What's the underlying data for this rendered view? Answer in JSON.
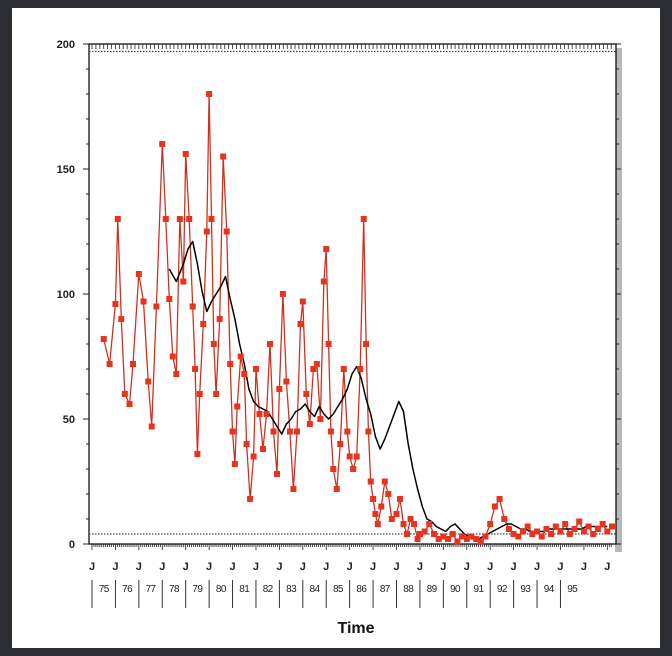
{
  "chart_data": {
    "type": "line",
    "title": "",
    "xlabel": "Time",
    "ylabel": "",
    "x_range": [
      1975.0,
      1997.2
    ],
    "ylim": [
      0,
      200
    ],
    "y_ticks": [
      0,
      50,
      100,
      150,
      200
    ],
    "y_tick_labels": [
      "0",
      "50",
      "100",
      "150",
      "200"
    ],
    "x_month_letter": "J",
    "x_year_labels": [
      "75",
      "76",
      "77",
      "78",
      "79",
      "80",
      "81",
      "82",
      "83",
      "84",
      "85",
      "86",
      "87",
      "88",
      "89",
      "90",
      "91",
      "92",
      "93",
      "94",
      "95"
    ],
    "grid": false,
    "reference_lines": [
      4,
      197
    ],
    "colors": {
      "observed": "#e8331f",
      "moving_average": "#000000",
      "axis": "#222222",
      "frame_shadow": "#b8b8b8"
    },
    "series": [
      {
        "points": [
          [
            1975.5,
            82
          ],
          [
            1975.75,
            72
          ],
          [
            1976.0,
            96
          ],
          [
            1976.1,
            130
          ],
          [
            1976.25,
            90
          ],
          [
            1976.4,
            60
          ],
          [
            1976.6,
            56
          ],
          [
            1976.75,
            72
          ],
          [
            1977.0,
            108
          ],
          [
            1977.2,
            97
          ],
          [
            1977.4,
            65
          ],
          [
            1977.55,
            47
          ],
          [
            1977.75,
            95
          ],
          [
            1978.0,
            160
          ],
          [
            1978.15,
            130
          ],
          [
            1978.3,
            98
          ],
          [
            1978.45,
            75
          ],
          [
            1978.6,
            68
          ],
          [
            1978.75,
            130
          ],
          [
            1978.9,
            105
          ],
          [
            1979.0,
            156
          ],
          [
            1979.15,
            130
          ],
          [
            1979.3,
            95
          ],
          [
            1979.4,
            70
          ],
          [
            1979.5,
            36
          ],
          [
            1979.6,
            60
          ],
          [
            1979.75,
            88
          ],
          [
            1979.9,
            125
          ],
          [
            1980.0,
            180
          ],
          [
            1980.1,
            130
          ],
          [
            1980.2,
            80
          ],
          [
            1980.3,
            60
          ],
          [
            1980.45,
            90
          ],
          [
            1980.6,
            155
          ],
          [
            1980.75,
            125
          ],
          [
            1980.9,
            72
          ],
          [
            1981.0,
            45
          ],
          [
            1981.1,
            32
          ],
          [
            1981.2,
            55
          ],
          [
            1981.35,
            75
          ],
          [
            1981.5,
            68
          ],
          [
            1981.6,
            40
          ],
          [
            1981.75,
            18
          ],
          [
            1981.9,
            35
          ],
          [
            1982.0,
            70
          ],
          [
            1982.15,
            52
          ],
          [
            1982.3,
            38
          ],
          [
            1982.45,
            52
          ],
          [
            1982.6,
            80
          ],
          [
            1982.75,
            45
          ],
          [
            1982.9,
            28
          ],
          [
            1983.0,
            62
          ],
          [
            1983.15,
            100
          ],
          [
            1983.3,
            65
          ],
          [
            1983.45,
            45
          ],
          [
            1983.6,
            22
          ],
          [
            1983.75,
            45
          ],
          [
            1983.9,
            88
          ],
          [
            1984.0,
            97
          ],
          [
            1984.15,
            60
          ],
          [
            1984.3,
            48
          ],
          [
            1984.45,
            70
          ],
          [
            1984.6,
            72
          ],
          [
            1984.75,
            50
          ],
          [
            1984.9,
            105
          ],
          [
            1985.0,
            118
          ],
          [
            1985.1,
            80
          ],
          [
            1985.2,
            45
          ],
          [
            1985.3,
            30
          ],
          [
            1985.45,
            22
          ],
          [
            1985.6,
            40
          ],
          [
            1985.75,
            70
          ],
          [
            1985.9,
            45
          ],
          [
            1986.0,
            35
          ],
          [
            1986.15,
            30
          ],
          [
            1986.3,
            35
          ],
          [
            1986.45,
            70
          ],
          [
            1986.6,
            130
          ],
          [
            1986.7,
            80
          ],
          [
            1986.8,
            45
          ],
          [
            1986.9,
            25
          ],
          [
            1987.0,
            18
          ],
          [
            1987.1,
            12
          ],
          [
            1987.2,
            8
          ],
          [
            1987.35,
            15
          ],
          [
            1987.5,
            25
          ],
          [
            1987.65,
            20
          ],
          [
            1987.8,
            10
          ],
          [
            1988.0,
            12
          ],
          [
            1988.15,
            18
          ],
          [
            1988.3,
            8
          ],
          [
            1988.45,
            4
          ],
          [
            1988.6,
            10
          ],
          [
            1988.75,
            8
          ],
          [
            1988.9,
            2
          ],
          [
            1989.0,
            4
          ],
          [
            1989.2,
            5
          ],
          [
            1989.4,
            8
          ],
          [
            1989.6,
            4
          ],
          [
            1989.8,
            2
          ],
          [
            1990.0,
            3
          ],
          [
            1990.2,
            2
          ],
          [
            1990.4,
            4
          ],
          [
            1990.6,
            1
          ],
          [
            1990.8,
            3
          ],
          [
            1991.0,
            2
          ],
          [
            1991.2,
            3
          ],
          [
            1991.4,
            2
          ],
          [
            1991.6,
            1
          ],
          [
            1991.8,
            3
          ],
          [
            1992.0,
            8
          ],
          [
            1992.2,
            15
          ],
          [
            1992.4,
            18
          ],
          [
            1992.6,
            10
          ],
          [
            1992.8,
            6
          ],
          [
            1993.0,
            4
          ],
          [
            1993.2,
            3
          ],
          [
            1993.4,
            5
          ],
          [
            1993.6,
            7
          ],
          [
            1993.8,
            4
          ],
          [
            1994.0,
            5
          ],
          [
            1994.2,
            3
          ],
          [
            1994.4,
            6
          ],
          [
            1994.6,
            4
          ],
          [
            1994.8,
            7
          ],
          [
            1995.0,
            5
          ],
          [
            1995.2,
            8
          ],
          [
            1995.4,
            4
          ],
          [
            1995.6,
            6
          ],
          [
            1995.8,
            9
          ],
          [
            1996.0,
            5
          ],
          [
            1996.2,
            7
          ],
          [
            1996.4,
            4
          ],
          [
            1996.6,
            6
          ],
          [
            1996.8,
            8
          ],
          [
            1997.0,
            5
          ],
          [
            1997.2,
            7
          ]
        ]
      },
      {
        "points": [
          [
            1978.3,
            110
          ],
          [
            1978.6,
            105
          ],
          [
            1978.9,
            112
          ],
          [
            1979.1,
            118
          ],
          [
            1979.3,
            121
          ],
          [
            1979.5,
            112
          ],
          [
            1979.7,
            101
          ],
          [
            1979.9,
            93
          ],
          [
            1980.1,
            97
          ],
          [
            1980.3,
            100
          ],
          [
            1980.5,
            103
          ],
          [
            1980.7,
            107
          ],
          [
            1980.9,
            98
          ],
          [
            1981.1,
            90
          ],
          [
            1981.3,
            80
          ],
          [
            1981.5,
            72
          ],
          [
            1981.7,
            62
          ],
          [
            1981.9,
            57
          ],
          [
            1982.1,
            55
          ],
          [
            1982.3,
            54
          ],
          [
            1982.5,
            53
          ],
          [
            1982.7,
            50
          ],
          [
            1982.9,
            47
          ],
          [
            1983.1,
            44
          ],
          [
            1983.3,
            48
          ],
          [
            1983.5,
            50
          ],
          [
            1983.7,
            53
          ],
          [
            1983.9,
            54
          ],
          [
            1984.1,
            56
          ],
          [
            1984.3,
            53
          ],
          [
            1984.5,
            51
          ],
          [
            1984.7,
            55
          ],
          [
            1984.9,
            52
          ],
          [
            1985.1,
            50
          ],
          [
            1985.3,
            52
          ],
          [
            1985.5,
            55
          ],
          [
            1985.7,
            58
          ],
          [
            1985.9,
            62
          ],
          [
            1986.1,
            68
          ],
          [
            1986.3,
            71
          ],
          [
            1986.5,
            66
          ],
          [
            1986.7,
            58
          ],
          [
            1986.9,
            52
          ],
          [
            1987.1,
            43
          ],
          [
            1987.3,
            38
          ],
          [
            1987.5,
            42
          ],
          [
            1987.7,
            47
          ],
          [
            1987.9,
            52
          ],
          [
            1988.1,
            57
          ],
          [
            1988.3,
            53
          ],
          [
            1988.5,
            40
          ],
          [
            1988.7,
            30
          ],
          [
            1988.9,
            22
          ],
          [
            1989.1,
            15
          ],
          [
            1989.3,
            10
          ],
          [
            1989.5,
            9
          ],
          [
            1989.7,
            7
          ],
          [
            1989.9,
            6
          ],
          [
            1990.1,
            5
          ],
          [
            1990.3,
            7
          ],
          [
            1990.5,
            8
          ],
          [
            1990.7,
            6
          ],
          [
            1990.9,
            4
          ],
          [
            1991.1,
            3
          ],
          [
            1991.3,
            3
          ],
          [
            1991.5,
            2
          ],
          [
            1991.7,
            3
          ],
          [
            1991.9,
            4
          ],
          [
            1992.1,
            5
          ],
          [
            1992.3,
            6
          ],
          [
            1992.5,
            7
          ],
          [
            1992.7,
            8
          ],
          [
            1992.9,
            8
          ],
          [
            1993.1,
            7
          ],
          [
            1993.3,
            6
          ],
          [
            1993.5,
            6
          ],
          [
            1993.7,
            5
          ],
          [
            1993.9,
            5
          ],
          [
            1994.1,
            5
          ],
          [
            1994.3,
            5
          ],
          [
            1994.5,
            6
          ],
          [
            1994.7,
            6
          ],
          [
            1994.9,
            6
          ],
          [
            1995.1,
            6
          ],
          [
            1995.3,
            6
          ],
          [
            1995.5,
            6
          ],
          [
            1995.7,
            6
          ],
          [
            1995.9,
            6
          ],
          [
            1996.1,
            7
          ],
          [
            1996.3,
            7
          ],
          [
            1996.5,
            7
          ],
          [
            1996.7,
            7
          ],
          [
            1997.0,
            7
          ]
        ]
      }
    ]
  }
}
